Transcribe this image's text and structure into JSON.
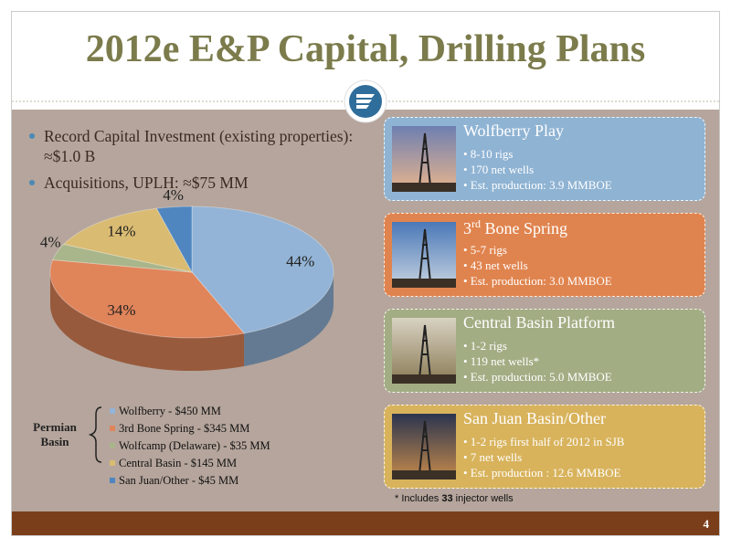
{
  "title": "2012e E&P Capital, Drilling Plans",
  "bullets": [
    "Record Capital Investment (existing properties): ≈$1.0 B",
    "Acquisitions, UPLH: ≈$75 MM"
  ],
  "chart_data": {
    "type": "pie",
    "categories": [
      "Wolfberry - $450 MM",
      "3rd Bone Spring - $345 MM",
      "Wolfcamp (Delaware) - $35 MM",
      "Central Basin - $145 MM",
      "San Juan/Other - $45 MM"
    ],
    "values": [
      44,
      34,
      4,
      14,
      4
    ],
    "value_labels": [
      "44%",
      "34%",
      "4%",
      "14%",
      "4%"
    ],
    "colors": [
      "#93b4d6",
      "#e0845a",
      "#a9b58a",
      "#d9bb72",
      "#4f86c0"
    ]
  },
  "group_label": "Permian Basin",
  "plays": [
    {
      "title": [
        {
          "text": "Wolfberry Play"
        }
      ],
      "color": "#8fb3d3",
      "bullets": [
        "• 8-10 rigs",
        "• 170 net wells",
        "• Est. production: 3.9 MMBOE"
      ]
    },
    {
      "title": [
        {
          "text": "3"
        },
        {
          "text": "rd",
          "sup": true
        },
        {
          "text": " Bone Spring"
        }
      ],
      "color": "#e0844f",
      "bullets": [
        "• 5-7 rigs",
        "• 43 net wells",
        "• Est. production: 3.0 MMBOE"
      ]
    },
    {
      "title": [
        {
          "text": "Central Basin Platform"
        }
      ],
      "color": "#a3ad84",
      "bullets": [
        "• 1-2 rigs",
        "• 119 net wells*",
        "• Est. production: 5.0 MMBOE"
      ]
    },
    {
      "title": [
        {
          "text": "San Juan Basin/Other"
        }
      ],
      "color": "#d8b35c",
      "bullets": [
        "• 1-2 rigs first half of 2012 in SJB",
        "• 7 net wells",
        "• Est. production : 12.6  MMBOE"
      ]
    }
  ],
  "footnote": [
    {
      "text": "* Includes "
    },
    {
      "text": "33",
      "bold": true
    },
    {
      "text": " injector wells"
    }
  ],
  "page_number": "4"
}
